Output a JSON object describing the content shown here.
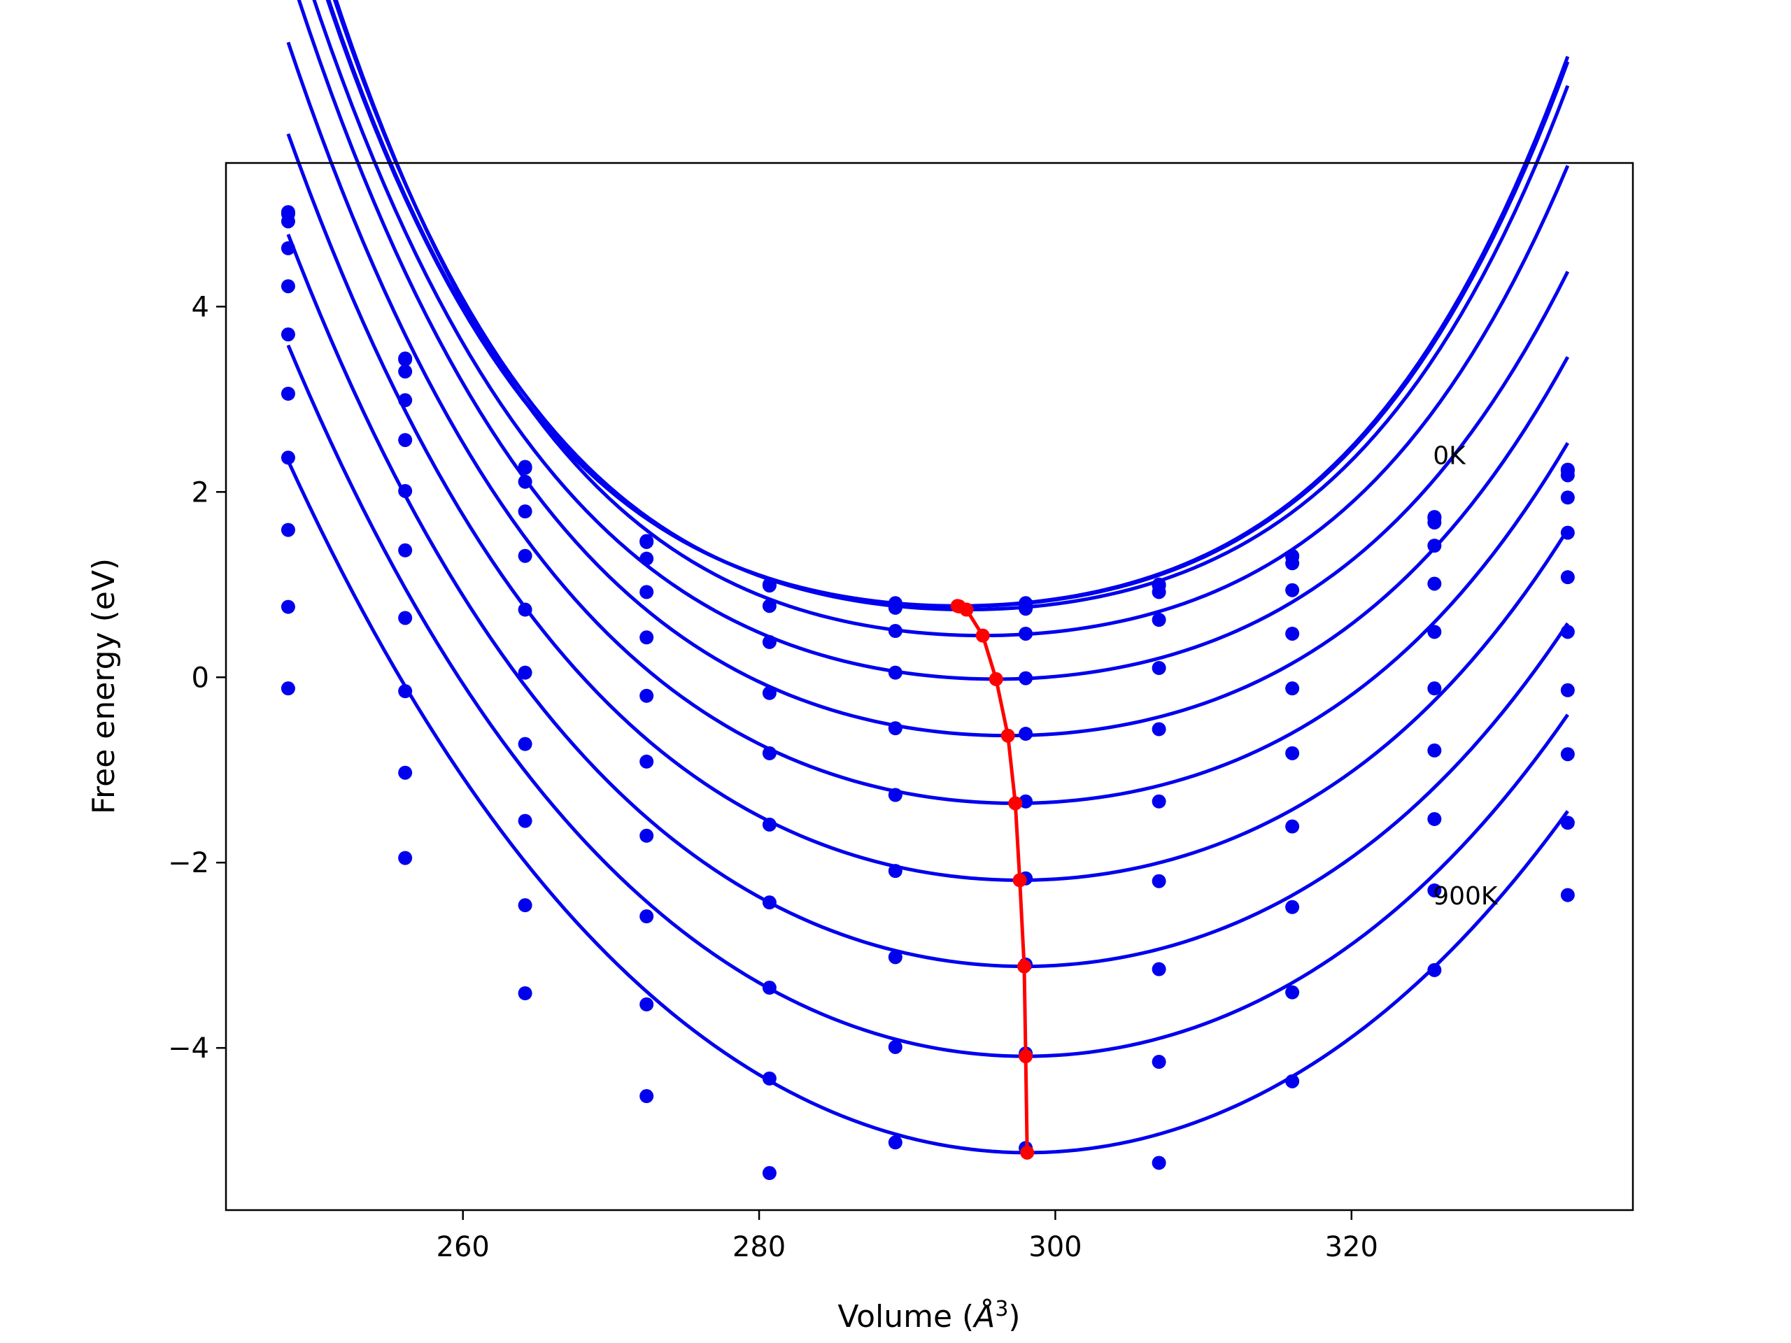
{
  "chart_data": {
    "type": "line",
    "xlabel": "Volume (",
    "xlabel_unit": "Å",
    "xlabel_exp": "3",
    "xlabel_close": ")",
    "ylabel": "Free energy (eV)",
    "xlim": [
      244,
      339
    ],
    "ylim": [
      -5.75,
      5.55
    ],
    "xticks": [
      260,
      280,
      300,
      320
    ],
    "yticks": [
      4,
      2,
      0,
      -2,
      -4
    ],
    "ytick_labels": [
      "4",
      "2",
      "0",
      "−2",
      "−4"
    ],
    "grid": false,
    "colors": {
      "curves": "#0000ee",
      "minima": "#ff0000"
    },
    "annotations": [
      {
        "text": "0K",
        "x": 325.5,
        "y": 2.3
      },
      {
        "text": "900K",
        "x": 325.5,
        "y": -2.45
      }
    ],
    "volumes": [
      248.2,
      256.1,
      264.2,
      272.4,
      280.7,
      289.2,
      298.0,
      307.0,
      316.0,
      325.6,
      334.6
    ],
    "series": [
      {
        "points": [
          5.02,
          3.44,
          2.27,
          1.47,
          1.0,
          0.8,
          0.8,
          1.0,
          1.31,
          1.73,
          2.24
        ],
        "fit": {
          "v0": 293.4,
          "e0": 0.77,
          "a": 0.00166,
          "b": 1.08e-06
        }
      },
      {
        "points": [
          5.0,
          3.43,
          2.26,
          1.46,
          0.99,
          0.79,
          0.79,
          0.99,
          1.3,
          1.72,
          2.23
        ],
        "fit": {
          "v0": 293.5,
          "e0": 0.765,
          "a": 0.001655,
          "b": 1.08e-06
        }
      },
      {
        "points": [
          4.92,
          3.3,
          2.11,
          1.28,
          0.77,
          0.75,
          0.74,
          0.92,
          1.23,
          1.67,
          2.18
        ],
        "fit": {
          "v0": 294.0,
          "e0": 0.73,
          "a": 0.00165,
          "b": 1.08e-06
        }
      },
      {
        "points": [
          4.63,
          2.99,
          1.79,
          0.92,
          0.38,
          0.5,
          0.47,
          0.62,
          0.94,
          1.42,
          1.94
        ],
        "fit": {
          "v0": 295.1,
          "e0": 0.45,
          "a": 0.00169,
          "b": 1e-06
        }
      },
      {
        "points": [
          4.22,
          2.56,
          1.31,
          0.43,
          -0.17,
          0.05,
          -0.01,
          0.1,
          0.47,
          1.01,
          1.56
        ],
        "fit": {
          "v0": 296.0,
          "e0": -0.02,
          "a": 0.00176,
          "b": 8e-07
        }
      },
      {
        "points": [
          3.7,
          2.01,
          0.73,
          -0.2,
          -0.82,
          -0.55,
          -0.61,
          -0.56,
          -0.12,
          0.49,
          1.08
        ],
        "fit": {
          "v0": 296.8,
          "e0": -0.63,
          "a": 0.00186,
          "b": 7e-07
        }
      },
      {
        "points": [
          3.06,
          1.37,
          0.05,
          -0.91,
          -1.59,
          -1.27,
          -1.34,
          -1.34,
          -0.82,
          -0.12,
          0.49
        ],
        "fit": {
          "v0": 297.3,
          "e0": -1.36,
          "a": 0.00196,
          "b": 6e-07
        }
      },
      {
        "points": [
          2.37,
          0.64,
          -0.72,
          -1.71,
          -2.43,
          -2.09,
          -2.17,
          -2.2,
          -1.61,
          -0.79,
          -0.14
        ],
        "fit": {
          "v0": 297.6,
          "e0": -2.19,
          "a": 0.00208,
          "b": 5e-07
        }
      },
      {
        "points": [
          1.59,
          -0.15,
          -1.55,
          -2.58,
          -3.35,
          -3.02,
          -3.1,
          -3.15,
          -2.48,
          -1.53,
          -0.83
        ],
        "fit": {
          "v0": 297.9,
          "e0": -3.12,
          "a": 0.00221,
          "b": 4e-07
        }
      },
      {
        "points": [
          0.76,
          -1.03,
          -2.46,
          -3.53,
          -4.33,
          -3.99,
          -4.06,
          -4.15,
          -3.4,
          -2.3,
          -1.57
        ],
        "fit": {
          "v0": 298.0,
          "e0": -4.09,
          "a": 0.00235,
          "b": 3e-07
        }
      },
      {
        "points": [
          -0.12,
          -1.95,
          -3.41,
          -4.52,
          -5.35,
          -5.02,
          -5.08,
          -5.24,
          -4.36,
          -3.16,
          -2.35
        ],
        "fit": {
          "v0": 298.1,
          "e0": -5.13,
          "a": 0.0025,
          "b": 2e-07
        }
      }
    ],
    "minima": [
      [
        293.4,
        0.77
      ],
      [
        293.5,
        0.765
      ],
      [
        294.0,
        0.73
      ],
      [
        295.1,
        0.45
      ],
      [
        296.0,
        -0.02
      ],
      [
        296.8,
        -0.63
      ],
      [
        297.3,
        -1.36
      ],
      [
        297.6,
        -2.19
      ],
      [
        297.9,
        -3.12
      ],
      [
        298.0,
        -4.09
      ],
      [
        298.1,
        -5.13
      ]
    ]
  }
}
